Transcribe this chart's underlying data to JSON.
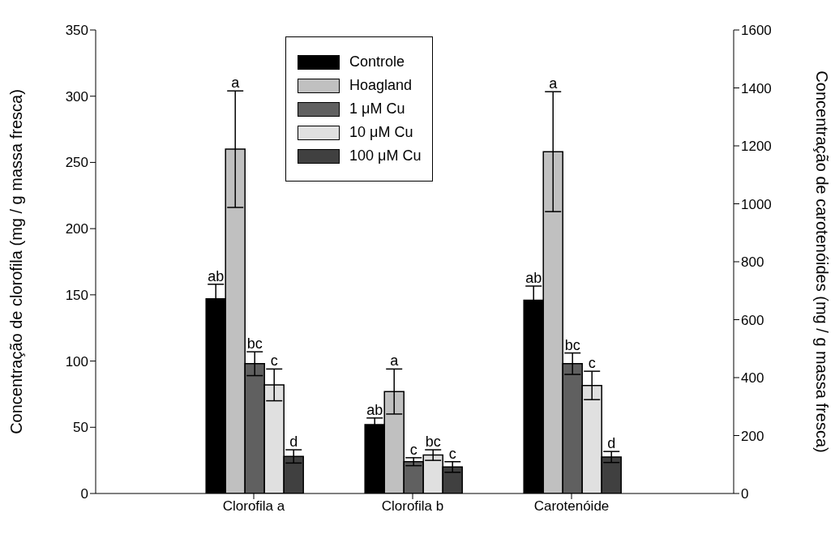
{
  "chart_data": {
    "type": "bar",
    "categories": [
      "Clorofila a",
      "Clorofila b",
      "Carotenóide"
    ],
    "ylabel": "Concentração de clorofila (mg / g massa fresca)",
    "y2label": "Concentração de carotenóides (mg / g massa fresca)",
    "ylim": [
      0,
      350
    ],
    "yticks": [
      0,
      50,
      100,
      150,
      200,
      250,
      300,
      350
    ],
    "y2lim": [
      0,
      1600
    ],
    "y2ticks": [
      0,
      200,
      400,
      600,
      800,
      1000,
      1200,
      1400,
      1600
    ],
    "legend": "top",
    "series": [
      {
        "name": "Controle",
        "color": "#000000",
        "values": [
          147,
          52,
          null
        ],
        "errors": [
          11,
          5,
          null
        ]
      },
      {
        "name": "Hoagland",
        "color": "#c0c0c0",
        "values": [
          260,
          77,
          null
        ],
        "errors": [
          44,
          17,
          null
        ]
      },
      {
        "name": "1 μM Cu",
        "color": "#606060",
        "values": [
          98,
          24,
          null
        ],
        "errors": [
          9,
          3,
          null
        ]
      },
      {
        "name": "10 μM Cu",
        "color": "#e0e0e0",
        "values": [
          82,
          29,
          null
        ],
        "errors": [
          12,
          4,
          null
        ]
      },
      {
        "name": "100 μM Cu",
        "color": "#404040",
        "values": [
          28,
          20,
          null
        ],
        "errors": [
          5,
          4,
          null
        ]
      },
      {
        "color": "#000000",
        "axis": "y2",
        "values": [
          null,
          null,
          667
        ],
        "errors": [
          null,
          null,
          49
        ]
      },
      {
        "color": "#c0c0c0",
        "axis": "y2",
        "values": [
          null,
          null,
          1180
        ],
        "errors": [
          null,
          null,
          207
        ]
      },
      {
        "color": "#606060",
        "axis": "y2",
        "values": [
          null,
          null,
          448
        ],
        "errors": [
          null,
          null,
          37
        ]
      },
      {
        "color": "#e0e0e0",
        "axis": "y2",
        "values": [
          null,
          null,
          373
        ],
        "errors": [
          null,
          null,
          49
        ]
      },
      {
        "color": "#404040",
        "axis": "y2",
        "values": [
          null,
          null,
          126
        ],
        "errors": [
          null,
          null,
          19
        ]
      }
    ],
    "annotations": [
      "ab",
      "a",
      "bc",
      "c",
      "d",
      "ab",
      "a",
      "c",
      "bc",
      "c",
      "ab",
      "a",
      "bc",
      "c",
      "d"
    ]
  }
}
